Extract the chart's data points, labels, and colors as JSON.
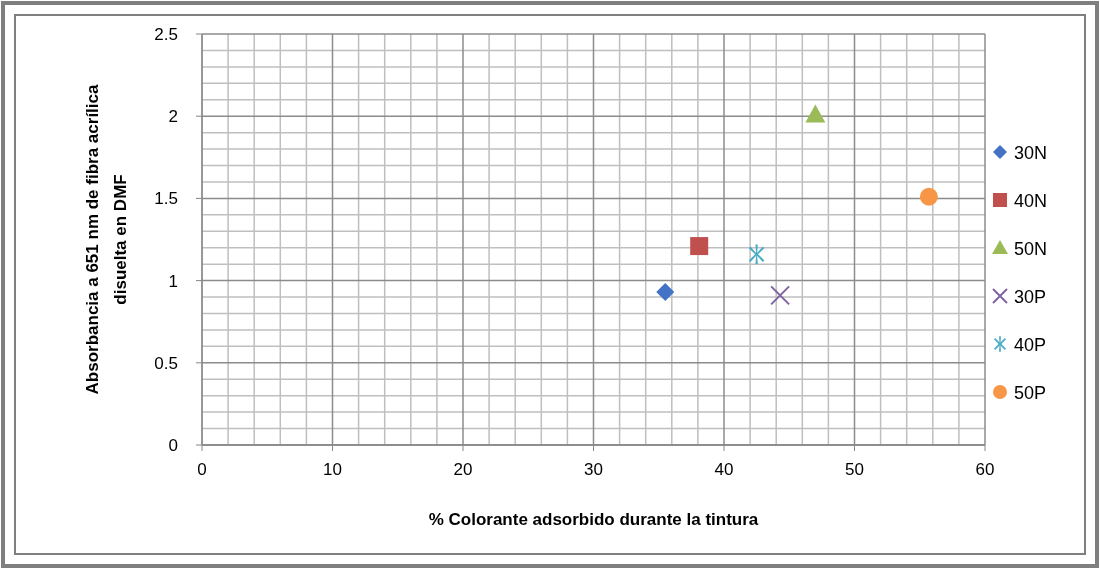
{
  "chart_data": {
    "type": "scatter",
    "xlabel": "% Colorante adsorbido durante la tintura",
    "ylabel": "Absorbancia a 651 nm de fibra acrílica disuelta en DMF",
    "xlim": [
      0,
      60
    ],
    "xticks": [
      0,
      10,
      20,
      30,
      40,
      50,
      60
    ],
    "ylim": [
      0,
      2.5
    ],
    "yticks": [
      0,
      0.5,
      1,
      1.5,
      2,
      2.5
    ],
    "grid": true,
    "legend": "right",
    "series": [
      {
        "name": "30N",
        "color": "#4472c4",
        "marker": "diamond",
        "x": [
          35.5
        ],
        "values": [
          0.93
        ]
      },
      {
        "name": "40N",
        "color": "#c0504d",
        "marker": "square",
        "x": [
          38.1
        ],
        "values": [
          1.21
        ]
      },
      {
        "name": "50N",
        "color": "#9bbb59",
        "marker": "triangle",
        "x": [
          47.0
        ],
        "values": [
          2.01
        ]
      },
      {
        "name": "30P",
        "color": "#8064a2",
        "marker": "cross",
        "x": [
          44.3
        ],
        "values": [
          0.91
        ]
      },
      {
        "name": "40P",
        "color": "#4bacc6",
        "marker": "star",
        "x": [
          42.5
        ],
        "values": [
          1.16
        ]
      },
      {
        "name": "50P",
        "color": "#f79646",
        "marker": "circle",
        "x": [
          55.7
        ],
        "values": [
          1.51
        ]
      }
    ]
  }
}
